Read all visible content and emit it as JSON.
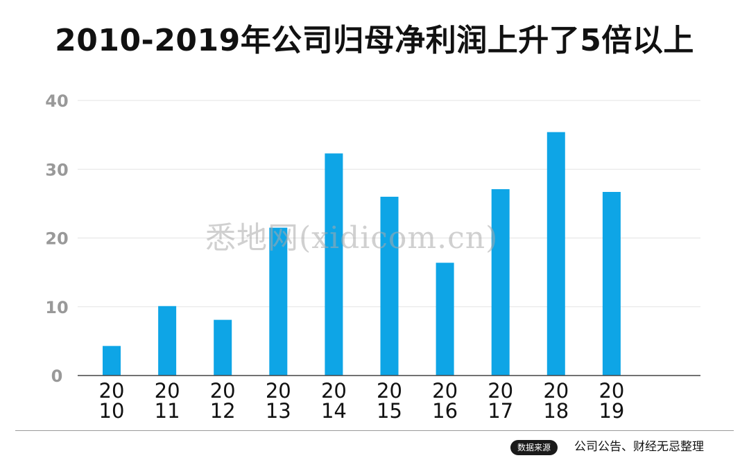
{
  "title": "2010-2019年公司归母净利润上升了5倍以上",
  "watermark": "悉地网(xidicom.cn)",
  "source": {
    "badge": "数据来源",
    "text": "公司公告、财经无忌整理"
  },
  "colors": {
    "bar": "#0ea5e6",
    "grid": "#e3e3e3",
    "axis": "#444444",
    "tick": "#999999",
    "title": "#111111"
  },
  "chart_data": {
    "type": "bar",
    "title": "2010-2019年公司归母净利润上升了5倍以上",
    "categories": [
      [
        "20",
        "10"
      ],
      [
        "20",
        "11"
      ],
      [
        "20",
        "12"
      ],
      [
        "20",
        "13"
      ],
      [
        "20",
        "14"
      ],
      [
        "20",
        "15"
      ],
      [
        "20",
        "16"
      ],
      [
        "20",
        "17"
      ],
      [
        "20",
        "18"
      ],
      [
        "20",
        "19"
      ]
    ],
    "values": [
      4.3,
      10.1,
      8.1,
      21.5,
      32.3,
      26.0,
      16.4,
      27.1,
      35.4,
      26.7
    ],
    "yticks": [
      0,
      10,
      20,
      30,
      40
    ],
    "ylim": [
      0,
      40
    ],
    "xlabel": "",
    "ylabel": "",
    "grid": true,
    "legend": "none"
  }
}
